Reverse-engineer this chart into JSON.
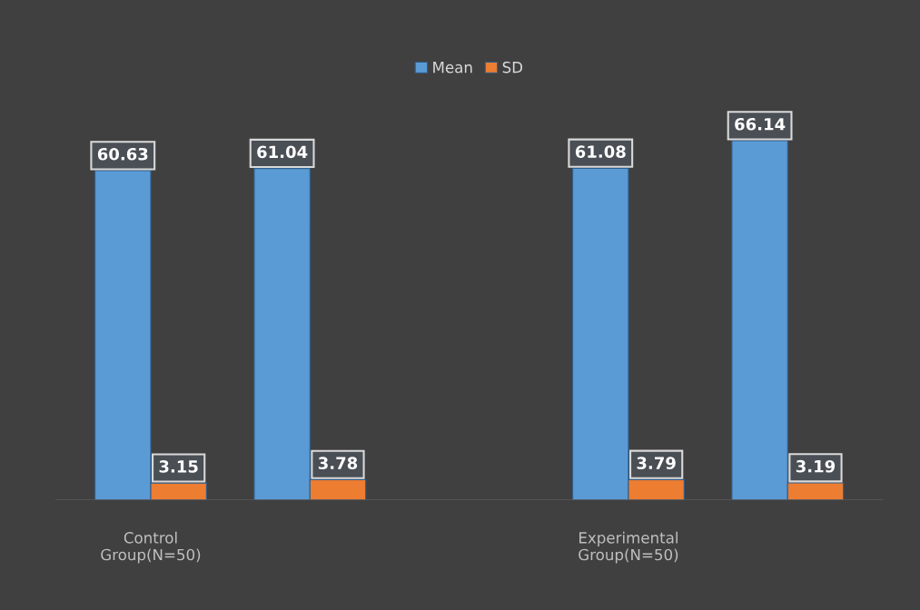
{
  "chart_data": {
    "type": "bar",
    "categories": [
      "Control\nGroup(N=50)",
      null,
      null,
      "Experimental\nGroup(N=50)",
      null
    ],
    "series": [
      {
        "name": "Mean",
        "color": "#5b9bd5",
        "values": [
          60.63,
          61.04,
          null,
          61.08,
          66.14
        ]
      },
      {
        "name": "SD",
        "color": "#ed7d31",
        "values": [
          3.15,
          3.78,
          null,
          3.79,
          3.19
        ]
      }
    ],
    "data_labels": true,
    "legend": "top",
    "grid": false
  }
}
